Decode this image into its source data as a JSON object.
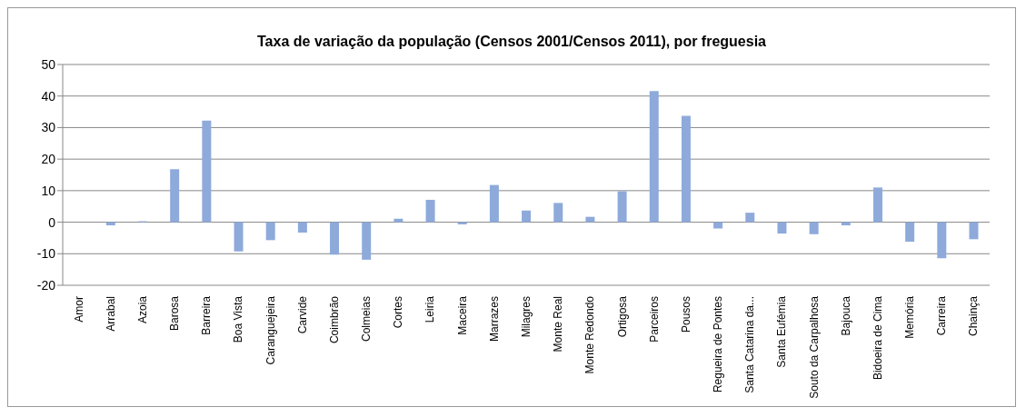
{
  "chart_data": {
    "type": "bar",
    "title": "Taxa de variação da população (Censos 2001/Censos 2011), por freguesia",
    "categories": [
      "Amor",
      "Arrabal",
      "Azoia",
      "Barosa",
      "Barreira",
      "Boa Vista",
      "Caranguejeira",
      "Carvide",
      "Coimbrão",
      "Colmeias",
      "Cortes",
      "Leiria",
      "Maceira",
      "Marrazes",
      "Milagres",
      "Monte Real",
      "Monte Redondo",
      "Ortigosa",
      "Parceiros",
      "Pousos",
      "Regueira de Pontes",
      "Santa Catarina da...",
      "Santa Eufémia",
      "Souto da Carpalhosa",
      "Bajouca",
      "Bidoeira de Cima",
      "Memória",
      "Carreira",
      "Chainça"
    ],
    "values": [
      0,
      -1.0,
      0.3,
      16.8,
      32.2,
      -9.3,
      -5.7,
      -3.3,
      -10.3,
      -11.9,
      1.1,
      7.1,
      -0.7,
      11.8,
      3.7,
      6.1,
      1.7,
      9.8,
      41.6,
      33.7,
      -2.0,
      3.0,
      -3.6,
      -3.8,
      -1.0,
      11.0,
      -6.2,
      -11.4,
      -5.4
    ],
    "color": "#8eaadb",
    "ylim": [
      -20,
      50
    ],
    "yticks": [
      -20,
      -10,
      0,
      10,
      20,
      30,
      40,
      50
    ],
    "grid": "y"
  }
}
